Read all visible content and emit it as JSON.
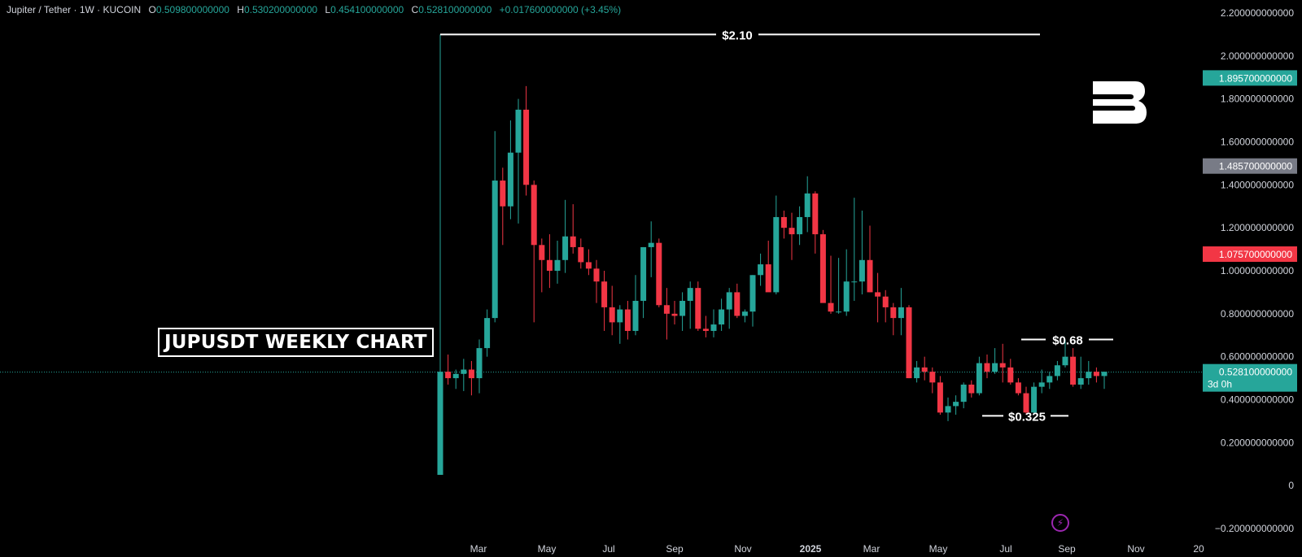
{
  "header": {
    "symbol": "Jupiter / Tether · 1W · KUCOIN",
    "open_label": "O",
    "open": "0.509800000000",
    "high_label": "H",
    "high": "0.530200000000",
    "low_label": "L",
    "low": "0.454100000000",
    "close_label": "C",
    "close": "0.528100000000",
    "change": "+0.017600000000 (+3.45%)"
  },
  "overlay_title": "JUPUSDT WEEKLY CHART",
  "colors": {
    "up": "#26a69a",
    "down": "#f23645",
    "background": "#000000",
    "text": "#d1d4dc"
  },
  "icons": {
    "logo": "brand-b-logo",
    "bolt": "lightning-bolt-icon"
  },
  "chart_data": {
    "type": "candlestick",
    "interval": "1W",
    "ylim": [
      -0.2,
      2.2
    ],
    "y_ticks": [
      "2.200000000000",
      "2.000000000000",
      "1.800000000000",
      "1.600000000000",
      "1.400000000000",
      "1.200000000000",
      "1.000000000000",
      "0.800000000000",
      "0.600000000000",
      "0.400000000000",
      "0.200000000000",
      "0",
      "−0.200000000000"
    ],
    "x_ticks": [
      "Mar",
      "May",
      "Jul",
      "Sep",
      "Nov",
      "2025",
      "Mar",
      "May",
      "Jul",
      "Sep",
      "Nov",
      "20"
    ],
    "price_labels": [
      {
        "value": 1.8957,
        "text": "1.895700000000",
        "color": "#26a69a"
      },
      {
        "value": 1.4857,
        "text": "1.485700000000",
        "color": "#787b86"
      },
      {
        "value": 1.0757,
        "text": "1.075700000000",
        "color": "#f23645"
      },
      {
        "value": 0.5281,
        "text": "0.528100000000",
        "sub": "3d 0h",
        "color": "#26a69a"
      }
    ],
    "annotations": [
      {
        "text": "$2.10",
        "value": 2.1
      },
      {
        "text": "$0.68",
        "value": 0.68
      },
      {
        "text": "$0.325",
        "value": 0.325
      }
    ],
    "candles": [
      [
        0.05,
        2.1,
        0.05,
        0.53
      ],
      [
        0.53,
        0.61,
        0.47,
        0.5
      ],
      [
        0.5,
        0.54,
        0.45,
        0.52
      ],
      [
        0.52,
        0.59,
        0.44,
        0.54
      ],
      [
        0.54,
        0.58,
        0.42,
        0.5
      ],
      [
        0.5,
        0.68,
        0.43,
        0.64
      ],
      [
        0.64,
        0.82,
        0.6,
        0.78
      ],
      [
        0.78,
        1.65,
        0.76,
        1.42
      ],
      [
        1.42,
        1.48,
        1.12,
        1.3
      ],
      [
        1.3,
        1.7,
        1.24,
        1.55
      ],
      [
        1.55,
        1.8,
        1.22,
        1.75
      ],
      [
        1.75,
        1.86,
        1.35,
        1.4
      ],
      [
        1.4,
        1.42,
        0.76,
        1.12
      ],
      [
        1.12,
        1.15,
        0.9,
        1.05
      ],
      [
        1.05,
        1.17,
        0.92,
        1.0
      ],
      [
        1.0,
        1.14,
        0.94,
        1.05
      ],
      [
        1.05,
        1.33,
        0.99,
        1.16
      ],
      [
        1.16,
        1.31,
        1.08,
        1.11
      ],
      [
        1.11,
        1.15,
        1.01,
        1.04
      ],
      [
        1.04,
        1.1,
        0.98,
        1.01
      ],
      [
        1.01,
        1.05,
        0.85,
        0.95
      ],
      [
        0.95,
        1.0,
        0.72,
        0.83
      ],
      [
        0.83,
        0.93,
        0.7,
        0.76
      ],
      [
        0.76,
        0.84,
        0.66,
        0.82
      ],
      [
        0.82,
        0.86,
        0.68,
        0.72
      ],
      [
        0.72,
        0.98,
        0.7,
        0.86
      ],
      [
        0.86,
        1.11,
        0.78,
        1.11
      ],
      [
        1.11,
        1.23,
        0.97,
        1.13
      ],
      [
        1.13,
        1.15,
        0.83,
        0.84
      ],
      [
        0.84,
        0.92,
        0.68,
        0.8
      ],
      [
        0.8,
        0.86,
        0.75,
        0.79
      ],
      [
        0.79,
        0.9,
        0.72,
        0.86
      ],
      [
        0.86,
        0.95,
        0.73,
        0.92
      ],
      [
        0.92,
        0.95,
        0.72,
        0.73
      ],
      [
        0.73,
        0.79,
        0.69,
        0.72
      ],
      [
        0.72,
        0.82,
        0.69,
        0.75
      ],
      [
        0.75,
        0.87,
        0.72,
        0.82
      ],
      [
        0.82,
        0.92,
        0.73,
        0.9
      ],
      [
        0.9,
        0.94,
        0.78,
        0.79
      ],
      [
        0.79,
        0.82,
        0.76,
        0.81
      ],
      [
        0.81,
        0.98,
        0.74,
        0.98
      ],
      [
        0.98,
        1.08,
        0.93,
        1.03
      ],
      [
        1.03,
        1.14,
        0.92,
        0.9
      ],
      [
        0.9,
        1.35,
        0.89,
        1.25
      ],
      [
        1.25,
        1.28,
        1.15,
        1.2
      ],
      [
        1.2,
        1.27,
        1.05,
        1.17
      ],
      [
        1.17,
        1.3,
        1.12,
        1.25
      ],
      [
        1.25,
        1.44,
        1.18,
        1.36
      ],
      [
        1.36,
        1.37,
        1.08,
        1.17
      ],
      [
        1.17,
        1.19,
        0.86,
        0.85
      ],
      [
        0.85,
        1.07,
        0.8,
        0.81
      ],
      [
        0.81,
        1.06,
        0.8,
        0.81
      ],
      [
        0.81,
        1.1,
        0.79,
        0.95
      ],
      [
        0.95,
        1.34,
        0.86,
        0.95
      ],
      [
        0.95,
        1.28,
        0.89,
        1.05
      ],
      [
        1.05,
        1.21,
        0.9,
        0.9
      ],
      [
        0.9,
        0.99,
        0.76,
        0.88
      ],
      [
        0.88,
        0.91,
        0.76,
        0.83
      ],
      [
        0.83,
        0.85,
        0.7,
        0.78
      ],
      [
        0.78,
        0.92,
        0.7,
        0.83
      ],
      [
        0.83,
        0.84,
        0.5,
        0.5
      ],
      [
        0.5,
        0.58,
        0.48,
        0.55
      ],
      [
        0.55,
        0.6,
        0.49,
        0.53
      ],
      [
        0.53,
        0.55,
        0.43,
        0.48
      ],
      [
        0.48,
        0.51,
        0.33,
        0.34
      ],
      [
        0.34,
        0.41,
        0.3,
        0.37
      ],
      [
        0.37,
        0.42,
        0.33,
        0.39
      ],
      [
        0.39,
        0.48,
        0.36,
        0.47
      ],
      [
        0.47,
        0.49,
        0.41,
        0.43
      ],
      [
        0.43,
        0.6,
        0.42,
        0.57
      ],
      [
        0.57,
        0.61,
        0.5,
        0.53
      ],
      [
        0.53,
        0.64,
        0.52,
        0.57
      ],
      [
        0.57,
        0.66,
        0.48,
        0.55
      ],
      [
        0.55,
        0.59,
        0.47,
        0.48
      ],
      [
        0.48,
        0.5,
        0.42,
        0.43
      ],
      [
        0.43,
        0.46,
        0.33,
        0.34
      ],
      [
        0.34,
        0.48,
        0.33,
        0.46
      ],
      [
        0.46,
        0.54,
        0.43,
        0.48
      ],
      [
        0.48,
        0.53,
        0.45,
        0.51
      ],
      [
        0.51,
        0.58,
        0.49,
        0.56
      ],
      [
        0.56,
        0.68,
        0.55,
        0.6
      ],
      [
        0.6,
        0.64,
        0.46,
        0.47
      ],
      [
        0.47,
        0.6,
        0.45,
        0.5
      ],
      [
        0.5,
        0.58,
        0.47,
        0.53
      ],
      [
        0.53,
        0.55,
        0.48,
        0.51
      ],
      [
        0.51,
        0.53,
        0.45,
        0.53
      ]
    ]
  }
}
